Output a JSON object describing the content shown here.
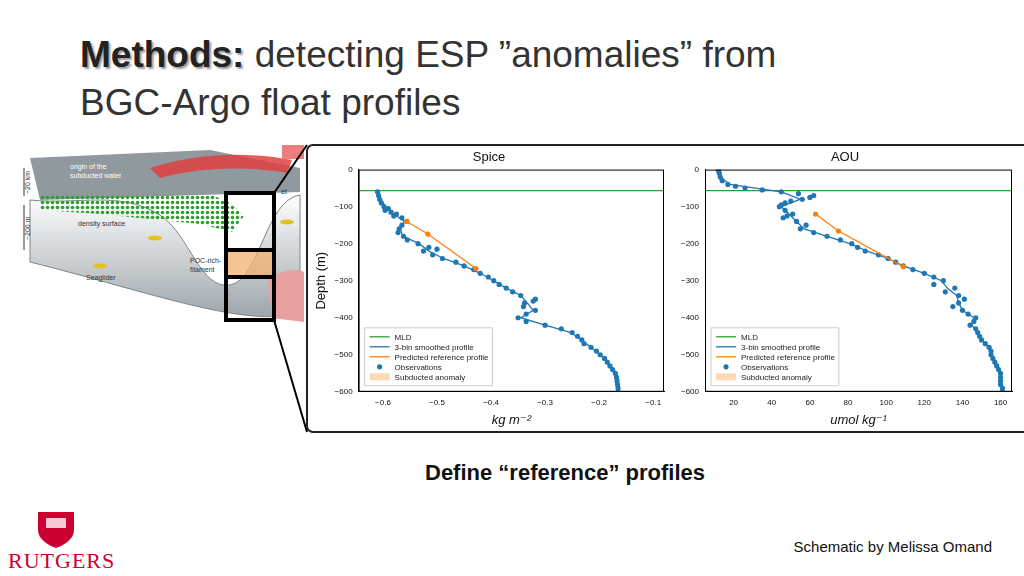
{
  "title_lead": "Methods:",
  "title_lines": [
    "detecting ESP ”anomalies” from",
    "BGC-Argo float profiles"
  ],
  "schematic": {
    "origin": [
      "origin of the",
      "subducted water"
    ],
    "scale_km": "~20 km",
    "scale_m": "~200 m",
    "density": "density surface",
    "filament": [
      "POC-rich-",
      "filament"
    ],
    "glider": "Seaglider",
    "fragment": "et"
  },
  "caption": "Define “reference” profiles",
  "credit": "Schematic by Melissa Omand",
  "logo_text": "RUTGERS",
  "chart_data": [
    {
      "type": "scatter",
      "title": "Spice",
      "x_label": "kg m⁻²",
      "y_label": "Depth (m)",
      "xlim": [
        -0.645,
        -0.08
      ],
      "xticks": [
        {
          "value": -0.6,
          "label": "−0.6"
        },
        {
          "value": -0.5,
          "label": "−0.5"
        },
        {
          "value": -0.4,
          "label": "−0.4"
        },
        {
          "value": -0.3,
          "label": "−0.3"
        },
        {
          "value": -0.2,
          "label": "−0.2"
        },
        {
          "value": -0.1,
          "label": "−0.1"
        }
      ],
      "ylim": [
        -600,
        0
      ],
      "yticks": [
        {
          "value": -600,
          "label": "−600"
        },
        {
          "value": -500,
          "label": "−500"
        },
        {
          "value": -400,
          "label": "−400"
        },
        {
          "value": -300,
          "label": "−300"
        },
        {
          "value": -200,
          "label": "−200"
        },
        {
          "value": -100,
          "label": "−100"
        },
        0
      ],
      "grid": false,
      "legend": "lower left",
      "series": [
        {
          "name": "MLD",
          "type": "hline",
          "color": "#2ca02c",
          "line_style": "solid",
          "values": [
            -57
          ]
        },
        {
          "name": "3-bin smoothed profile",
          "type": "line",
          "color": "#1f77b4",
          "marker": "none",
          "line_style": "solid",
          "x": [
            -0.609,
            -0.605,
            -0.595,
            -0.58,
            -0.56,
            -0.568,
            -0.563,
            -0.533,
            -0.515,
            -0.488,
            -0.45,
            -0.42,
            -0.395,
            -0.372,
            -0.345,
            -0.333,
            -0.322,
            -0.345,
            -0.3,
            -0.252,
            -0.233,
            -0.215,
            -0.198,
            -0.185,
            -0.175,
            -0.168,
            -0.166,
            -0.165
          ],
          "values": [
            -60,
            -80,
            -100,
            -120,
            -140,
            -160,
            -180,
            -200,
            -220,
            -240,
            -260,
            -280,
            -300,
            -320,
            -340,
            -360,
            -380,
            -400,
            -420,
            -440,
            -460,
            -480,
            -500,
            -520,
            -540,
            -560,
            -580,
            -600
          ]
        },
        {
          "name": "Predicted reference profile",
          "type": "line",
          "color": "#ff7f0e",
          "marker": "o",
          "line_style": "solid",
          "x": [
            -0.556,
            -0.517,
            -0.428
          ],
          "values": [
            -140,
            -174,
            -267
          ]
        },
        {
          "name": "Observations",
          "type": "scatter",
          "color": "#1f77b4",
          "marker": "o",
          "x": [
            -0.61,
            -0.608,
            -0.606,
            -0.603,
            -0.598,
            -0.59,
            -0.596,
            -0.585,
            -0.575,
            -0.58,
            -0.565,
            -0.556,
            -0.565,
            -0.57,
            -0.572,
            -0.562,
            -0.555,
            -0.535,
            -0.515,
            -0.5,
            -0.525,
            -0.508,
            -0.49,
            -0.465,
            -0.45,
            -0.432,
            -0.42,
            -0.405,
            -0.395,
            -0.385,
            -0.372,
            -0.36,
            -0.345,
            -0.318,
            -0.322,
            -0.338,
            -0.34,
            -0.318,
            -0.335,
            -0.35,
            -0.335,
            -0.3,
            -0.27,
            -0.25,
            -0.24,
            -0.232,
            -0.228,
            -0.215,
            -0.205,
            -0.198,
            -0.19,
            -0.185,
            -0.18,
            -0.175,
            -0.17,
            -0.168,
            -0.167,
            -0.166,
            -0.165,
            -0.165
          ],
          "values": [
            -60,
            -70,
            -80,
            -90,
            -100,
            -105,
            -110,
            -115,
            -120,
            -125,
            -130,
            -140,
            -150,
            -160,
            -170,
            -180,
            -190,
            -200,
            -210,
            -215,
            -220,
            -230,
            -240,
            -250,
            -260,
            -270,
            -280,
            -290,
            -300,
            -310,
            -320,
            -330,
            -340,
            -350,
            -355,
            -360,
            -370,
            -380,
            -390,
            -400,
            -410,
            -420,
            -430,
            -440,
            -450,
            -460,
            -470,
            -480,
            -490,
            -500,
            -510,
            -520,
            -530,
            -540,
            -550,
            -560,
            -570,
            -580,
            -590,
            -600
          ]
        },
        {
          "name": "Subducted anomaly",
          "type": "area",
          "color": "#fdd9b5",
          "x": [],
          "values": []
        }
      ]
    },
    {
      "type": "scatter",
      "title": "AOU",
      "x_label": "umol kg⁻¹",
      "xlim": [
        5,
        166
      ],
      "xticks": [
        20,
        40,
        60,
        80,
        100,
        120,
        140,
        160
      ],
      "ylim": [
        -600,
        0
      ],
      "yticks": [
        {
          "value": -600,
          "label": "−600"
        },
        {
          "value": -500,
          "label": "−500"
        },
        {
          "value": -400,
          "label": "−400"
        },
        {
          "value": -300,
          "label": "−300"
        },
        {
          "value": -200,
          "label": "−200"
        },
        {
          "value": -100,
          "label": "−100"
        },
        0
      ],
      "grid": false,
      "legend": "lower left",
      "series": [
        {
          "name": "MLD",
          "type": "hline",
          "color": "#2ca02c",
          "line_style": "solid",
          "values": [
            -57
          ]
        },
        {
          "name": "3-bin smoothed profile",
          "type": "line",
          "color": "#1f77b4",
          "marker": "none",
          "line_style": "solid",
          "x": [
            12,
            13,
            18,
            45,
            55,
            45,
            49,
            53,
            57,
            69,
            81,
            90,
            101,
            109,
            120,
            129,
            132,
            137,
            138,
            140,
            146,
            145,
            148,
            150,
            154,
            155,
            157,
            159,
            160,
            160,
            161
          ],
          "values": [
            -2,
            -20,
            -40,
            -60,
            -80,
            -100,
            -120,
            -140,
            -160,
            -180,
            -200,
            -220,
            -240,
            -260,
            -280,
            -300,
            -320,
            -340,
            -360,
            -380,
            -400,
            -420,
            -440,
            -460,
            -480,
            -500,
            -520,
            -540,
            -560,
            -580,
            -600
          ]
        },
        {
          "name": "Predicted reference profile",
          "type": "line",
          "color": "#ff7f0e",
          "marker": "o",
          "line_style": "solid",
          "x": [
            63,
            75,
            109
          ],
          "values": [
            -120,
            -166,
            -262
          ]
        },
        {
          "name": "Observations",
          "type": "scatter",
          "color": "#1f77b4",
          "marker": "o",
          "x": [
            12,
            12.5,
            13,
            14,
            17,
            21,
            26,
            35,
            45,
            54,
            62,
            60,
            56,
            50,
            47,
            45,
            44,
            47,
            51,
            48,
            46,
            53,
            58,
            55,
            62,
            69,
            76,
            82,
            85,
            89,
            96,
            101,
            105,
            109,
            114,
            120,
            125,
            130,
            125,
            136,
            131,
            138,
            141,
            138,
            135,
            140,
            143,
            147,
            146,
            144,
            147,
            148,
            149,
            150,
            152,
            154,
            155,
            155,
            156,
            157,
            158,
            159,
            160,
            160,
            160,
            160,
            161,
            161
          ],
          "values": [
            -2,
            -10,
            -20,
            -30,
            -40,
            -45,
            -50,
            -55,
            -60,
            -65,
            -70,
            -75,
            -80,
            -85,
            -90,
            -95,
            -100,
            -110,
            -120,
            -125,
            -130,
            -140,
            -150,
            -160,
            -170,
            -180,
            -190,
            -200,
            -210,
            -220,
            -230,
            -240,
            -250,
            -260,
            -270,
            -280,
            -290,
            -300,
            -310,
            -320,
            -330,
            -340,
            -350,
            -360,
            -370,
            -380,
            -390,
            -400,
            -410,
            -420,
            -430,
            -440,
            -450,
            -460,
            -470,
            -480,
            -490,
            -500,
            -510,
            -520,
            -530,
            -540,
            -550,
            -560,
            -570,
            -580,
            -590,
            -600
          ]
        },
        {
          "name": "Subducted anomaly",
          "type": "area",
          "color": "#fdd9b5",
          "x": [],
          "values": []
        }
      ]
    }
  ]
}
